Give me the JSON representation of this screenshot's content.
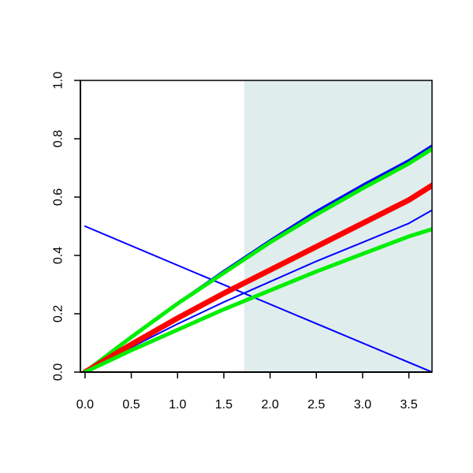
{
  "chart_data": {
    "type": "line",
    "title": "",
    "xlabel": "",
    "ylabel": "",
    "xlim": [
      -0.05,
      3.75
    ],
    "ylim": [
      0,
      1.0
    ],
    "x_ticks": [
      0.0,
      0.5,
      1.0,
      1.5,
      2.0,
      2.5,
      3.0,
      3.5
    ],
    "x_tick_labels": [
      "0.0",
      "0.5",
      "1.0",
      "1.5",
      "2.0",
      "2.5",
      "3.0",
      "3.5"
    ],
    "y_ticks": [
      0.0,
      0.2,
      0.4,
      0.6,
      0.8,
      1.0
    ],
    "y_tick_labels": [
      "0.0",
      "0.2",
      "0.4",
      "0.6",
      "0.8",
      "1.0"
    ],
    "grid": false,
    "legend": "none",
    "shaded_region": {
      "x_start": 1.72,
      "x_end": 3.75,
      "color": "#e0eded"
    },
    "series": [
      {
        "color": "#0000ff",
        "width": 2,
        "x": [
          0,
          1.72,
          3.75
        ],
        "y": [
          0.5,
          0.27,
          0.0
        ]
      },
      {
        "color": "#0000ff",
        "width": 2,
        "x": [
          0,
          0.5,
          1.0,
          1.5,
          2.0,
          2.5,
          3.0,
          3.5,
          3.75
        ],
        "y": [
          0.0,
          0.085,
          0.165,
          0.24,
          0.31,
          0.38,
          0.445,
          0.51,
          0.555
        ]
      },
      {
        "color": "#0000ff",
        "width": 4,
        "x": [
          0,
          0.5,
          1.0,
          1.5,
          2.0,
          2.5,
          3.0,
          3.5,
          3.75
        ],
        "y": [
          0.0,
          0.12,
          0.235,
          0.345,
          0.45,
          0.55,
          0.64,
          0.725,
          0.775
        ]
      },
      {
        "color": "#00ee00",
        "width": 5,
        "x": [
          0,
          0.5,
          1.0,
          1.5,
          2.0,
          2.5,
          3.0,
          3.5,
          3.75
        ],
        "y": [
          0.0,
          0.12,
          0.235,
          0.34,
          0.445,
          0.54,
          0.63,
          0.715,
          0.765
        ]
      },
      {
        "color": "#ff0000",
        "width": 7,
        "x": [
          0,
          0.5,
          1.0,
          1.5,
          2.0,
          2.5,
          3.0,
          3.5,
          3.75
        ],
        "y": [
          0.0,
          0.095,
          0.185,
          0.27,
          0.35,
          0.43,
          0.51,
          0.59,
          0.64
        ]
      },
      {
        "color": "#00ee00",
        "width": 5,
        "x": [
          0,
          0.5,
          1.0,
          1.5,
          2.0,
          2.5,
          3.0,
          3.5,
          3.75
        ],
        "y": [
          0.0,
          0.075,
          0.145,
          0.215,
          0.28,
          0.345,
          0.405,
          0.465,
          0.49
        ]
      }
    ]
  }
}
